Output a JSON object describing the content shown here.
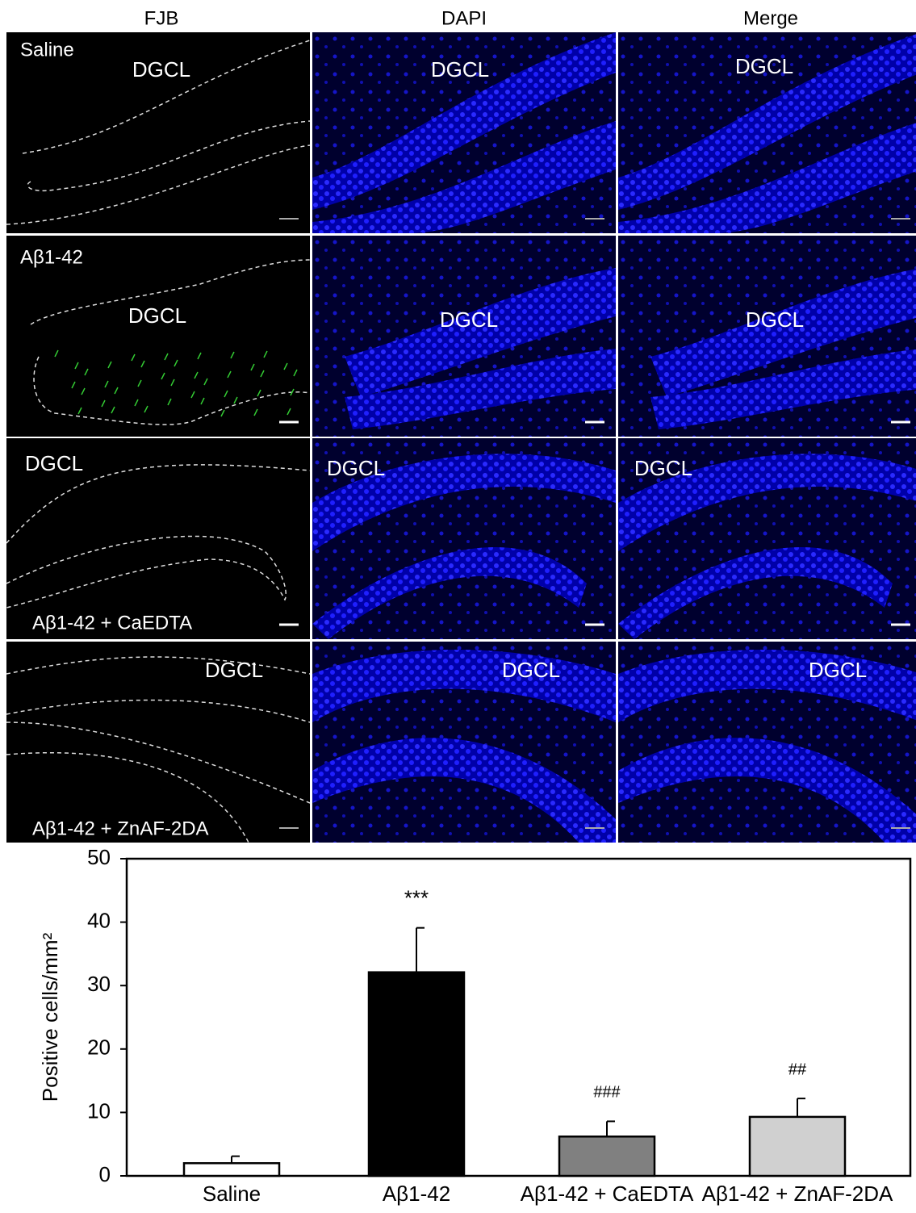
{
  "panels": {
    "columns": [
      "FJB",
      "DAPI",
      "Merge"
    ],
    "rows": [
      {
        "condition": "Saline",
        "region": "DGCL"
      },
      {
        "condition": "Aβ1-42",
        "region": "DGCL"
      },
      {
        "condition": "Aβ1-42 + CaEDTA",
        "region": "DGCL"
      },
      {
        "condition": "Aβ1-42 + ZnAF-2DA",
        "region": "DGCL"
      }
    ]
  },
  "chart_data": {
    "type": "bar",
    "ylabel": "Positive cells/mm²",
    "categories": [
      "Saline",
      "Aβ1-42",
      "Aβ1-42 + CaEDTA",
      "Aβ1-42 + ZnAF-2DA"
    ],
    "values": [
      2.0,
      32.1,
      6.2,
      9.3
    ],
    "errors": [
      1.1,
      7.0,
      2.4,
      2.9
    ],
    "significance": [
      null,
      "***",
      "###",
      "##"
    ],
    "colors": [
      "#ffffff",
      "#000000",
      "#808080",
      "#d0d0d0"
    ],
    "ylim": [
      0,
      50
    ],
    "yticks": [
      0,
      10,
      20,
      30,
      40,
      50
    ]
  }
}
